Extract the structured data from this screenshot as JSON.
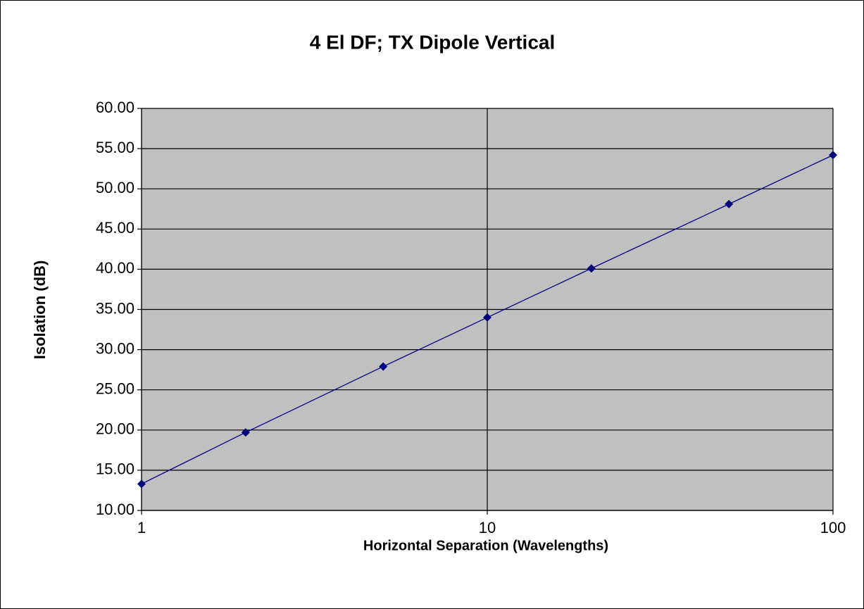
{
  "chart_data": {
    "type": "line",
    "title": "4 El DF; TX Dipole Vertical",
    "xlabel": "Horizontal Separation (Wavelengths)",
    "ylabel": "Isolation (dB)",
    "x": [
      1,
      2,
      5,
      10,
      20,
      50,
      100
    ],
    "values": [
      13.3,
      19.7,
      27.9,
      34.0,
      40.1,
      48.1,
      54.2
    ],
    "color": "#000080",
    "xscale": "log",
    "xlim": [
      1,
      100
    ],
    "xticks": [
      1,
      10,
      100
    ],
    "ylim": [
      10,
      60
    ],
    "yticks": [
      {
        "value": 10,
        "label": "10.00"
      },
      {
        "value": 15,
        "label": "15.00"
      },
      {
        "value": 20,
        "label": "20.00"
      },
      {
        "value": 25,
        "label": "25.00"
      },
      {
        "value": 30,
        "label": "30.00"
      },
      {
        "value": 35,
        "label": "35.00"
      },
      {
        "value": 40,
        "label": "40.00"
      },
      {
        "value": 45,
        "label": "45.00"
      },
      {
        "value": 50,
        "label": "50.00"
      },
      {
        "value": 55,
        "label": "55.00"
      },
      {
        "value": 60,
        "label": "60.00"
      }
    ],
    "grid": true,
    "plot_background": "#c0c0c0"
  }
}
